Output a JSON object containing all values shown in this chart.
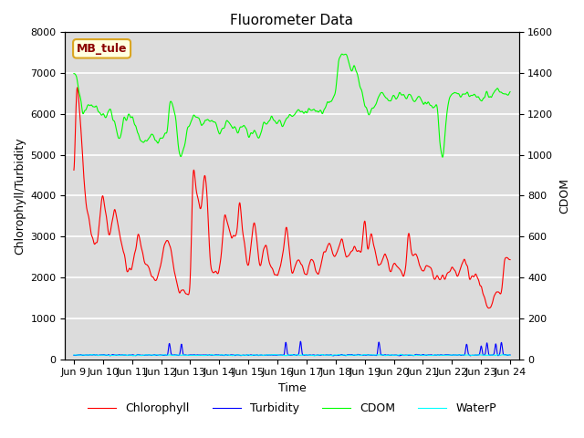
{
  "title": "Fluorometer Data",
  "xlabel": "Time",
  "ylabel_left": "Chlorophyll/Turbidity",
  "ylabel_right": "CDOM",
  "annotation": "MB_tule",
  "ylim_left": [
    0,
    8000
  ],
  "ylim_right": [
    0,
    1600
  ],
  "x_tick_labels": [
    "Jun 9",
    "Jun 10",
    "Jun 11",
    "Jun 12",
    "Jun 13",
    "Jun 14",
    "Jun 15",
    "Jun 16",
    "Jun 17",
    "Jun 18",
    "Jun 19",
    "Jun 20",
    "Jun 21",
    "Jun 22",
    "Jun 23",
    "Jun 24"
  ],
  "legend_labels": [
    "Chlorophyll",
    "Turbidity",
    "CDOM",
    "WaterP"
  ],
  "legend_colors": [
    "red",
    "blue",
    "lime",
    "cyan"
  ],
  "background_color": "#dcdcdc",
  "grid_color": "white",
  "line_lw": 0.8
}
